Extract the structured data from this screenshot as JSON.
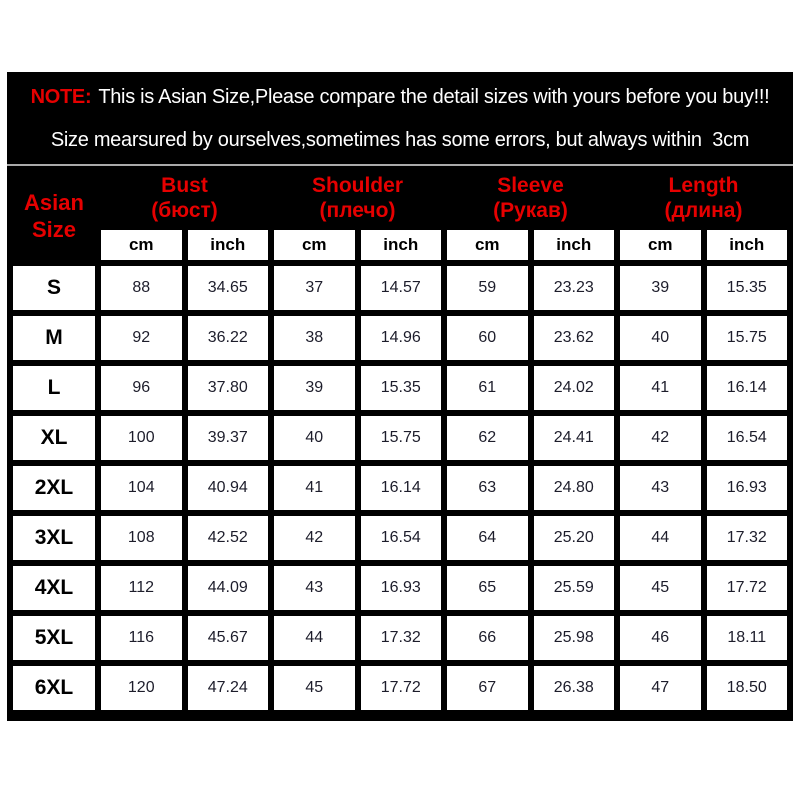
{
  "colors": {
    "page_bg": "#ffffff",
    "panel_bg": "#000000",
    "accent_red": "#e60000",
    "note_text": "#ffffff",
    "cell_bg": "#ffffff",
    "value_text": "#1d1d2b",
    "label_text": "#000000",
    "divider": "#a9a9a9"
  },
  "note": {
    "label": "NOTE:",
    "line1": "This is Asian Size,Please compare the detail sizes with yours before you buy!!!",
    "line2": "Size mearsured by ourselves,sometimes has some errors, but always within  3cm"
  },
  "table": {
    "size_header": {
      "line1": "Asian",
      "line2": "Size"
    },
    "groups": [
      {
        "en": "Bust",
        "ru": "(бюст)"
      },
      {
        "en": "Shoulder",
        "ru": "(плечо)"
      },
      {
        "en": "Sleeve",
        "ru": "(Рукав)"
      },
      {
        "en": "Length",
        "ru": "(длина)"
      }
    ],
    "units": [
      "cm",
      "inch"
    ],
    "rows": [
      {
        "size": "S",
        "values": [
          "88",
          "34.65",
          "37",
          "14.57",
          "59",
          "23.23",
          "39",
          "15.35"
        ]
      },
      {
        "size": "M",
        "values": [
          "92",
          "36.22",
          "38",
          "14.96",
          "60",
          "23.62",
          "40",
          "15.75"
        ]
      },
      {
        "size": "L",
        "values": [
          "96",
          "37.80",
          "39",
          "15.35",
          "61",
          "24.02",
          "41",
          "16.14"
        ]
      },
      {
        "size": "XL",
        "values": [
          "100",
          "39.37",
          "40",
          "15.75",
          "62",
          "24.41",
          "42",
          "16.54"
        ]
      },
      {
        "size": "2XL",
        "values": [
          "104",
          "40.94",
          "41",
          "16.14",
          "63",
          "24.80",
          "43",
          "16.93"
        ]
      },
      {
        "size": "3XL",
        "values": [
          "108",
          "42.52",
          "42",
          "16.54",
          "64",
          "25.20",
          "44",
          "17.32"
        ]
      },
      {
        "size": "4XL",
        "values": [
          "112",
          "44.09",
          "43",
          "16.93",
          "65",
          "25.59",
          "45",
          "17.72"
        ]
      },
      {
        "size": "5XL",
        "values": [
          "116",
          "45.67",
          "44",
          "17.32",
          "66",
          "25.98",
          "46",
          "18.11"
        ]
      },
      {
        "size": "6XL",
        "values": [
          "120",
          "47.24",
          "45",
          "17.72",
          "67",
          "26.38",
          "47",
          "18.50"
        ]
      }
    ]
  }
}
